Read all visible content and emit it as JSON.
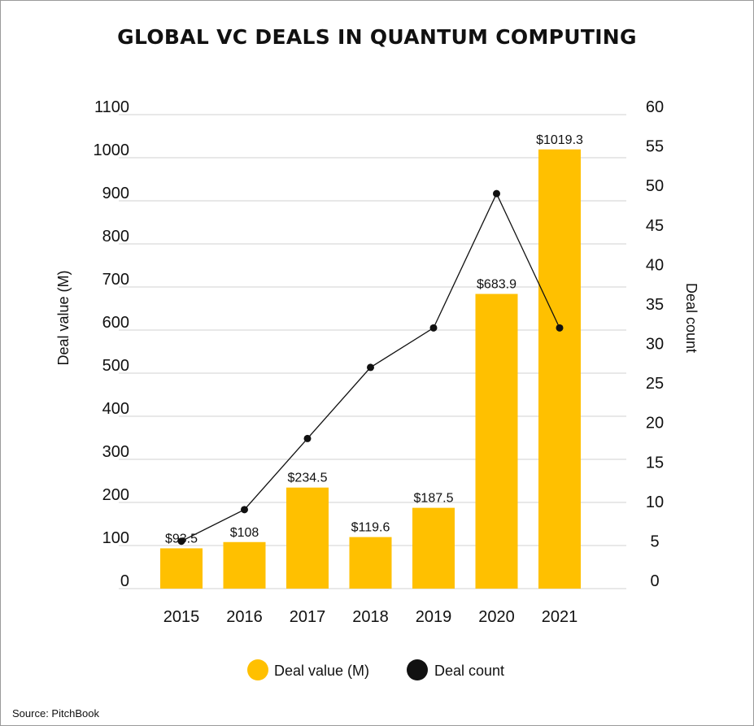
{
  "chart_data": {
    "type": "bar",
    "title": "GLOBAL VC DEALS IN QUANTUM COMPUTING",
    "categories": [
      "2015",
      "2016",
      "2017",
      "2018",
      "2019",
      "2020",
      "2021"
    ],
    "series": [
      {
        "name": "Deal value (M)",
        "kind": "bar",
        "axis": "left",
        "values": [
          93.5,
          108,
          234.5,
          119.6,
          187.5,
          683.9,
          1019.3
        ],
        "labels": [
          "$93.5",
          "$108",
          "$234.5",
          "$119.6",
          "$187.5",
          "$683.9",
          "$1019.3"
        ]
      },
      {
        "name": "Deal count",
        "kind": "line",
        "axis": "right",
        "values": [
          6,
          10,
          19,
          28,
          33,
          50,
          33
        ]
      }
    ],
    "ylabel": "Deal value (M)",
    "y2label": "Deal count",
    "ylim": [
      0,
      1100
    ],
    "y2lim": [
      0,
      60
    ],
    "yticks": [
      "0",
      "100",
      "200",
      "300",
      "400",
      "500",
      "600",
      "700",
      "800",
      "900",
      "1000",
      "1100"
    ],
    "y2ticks": [
      "0",
      "5",
      "10",
      "15",
      "20",
      "25",
      "30",
      "35",
      "40",
      "45",
      "50",
      "55",
      "60"
    ],
    "grid": true,
    "legend_position": "bottom"
  },
  "colors": {
    "bar": "#FFC000",
    "line": "#111111",
    "grid": "#d0d0d0"
  },
  "source": "Source: PitchBook"
}
